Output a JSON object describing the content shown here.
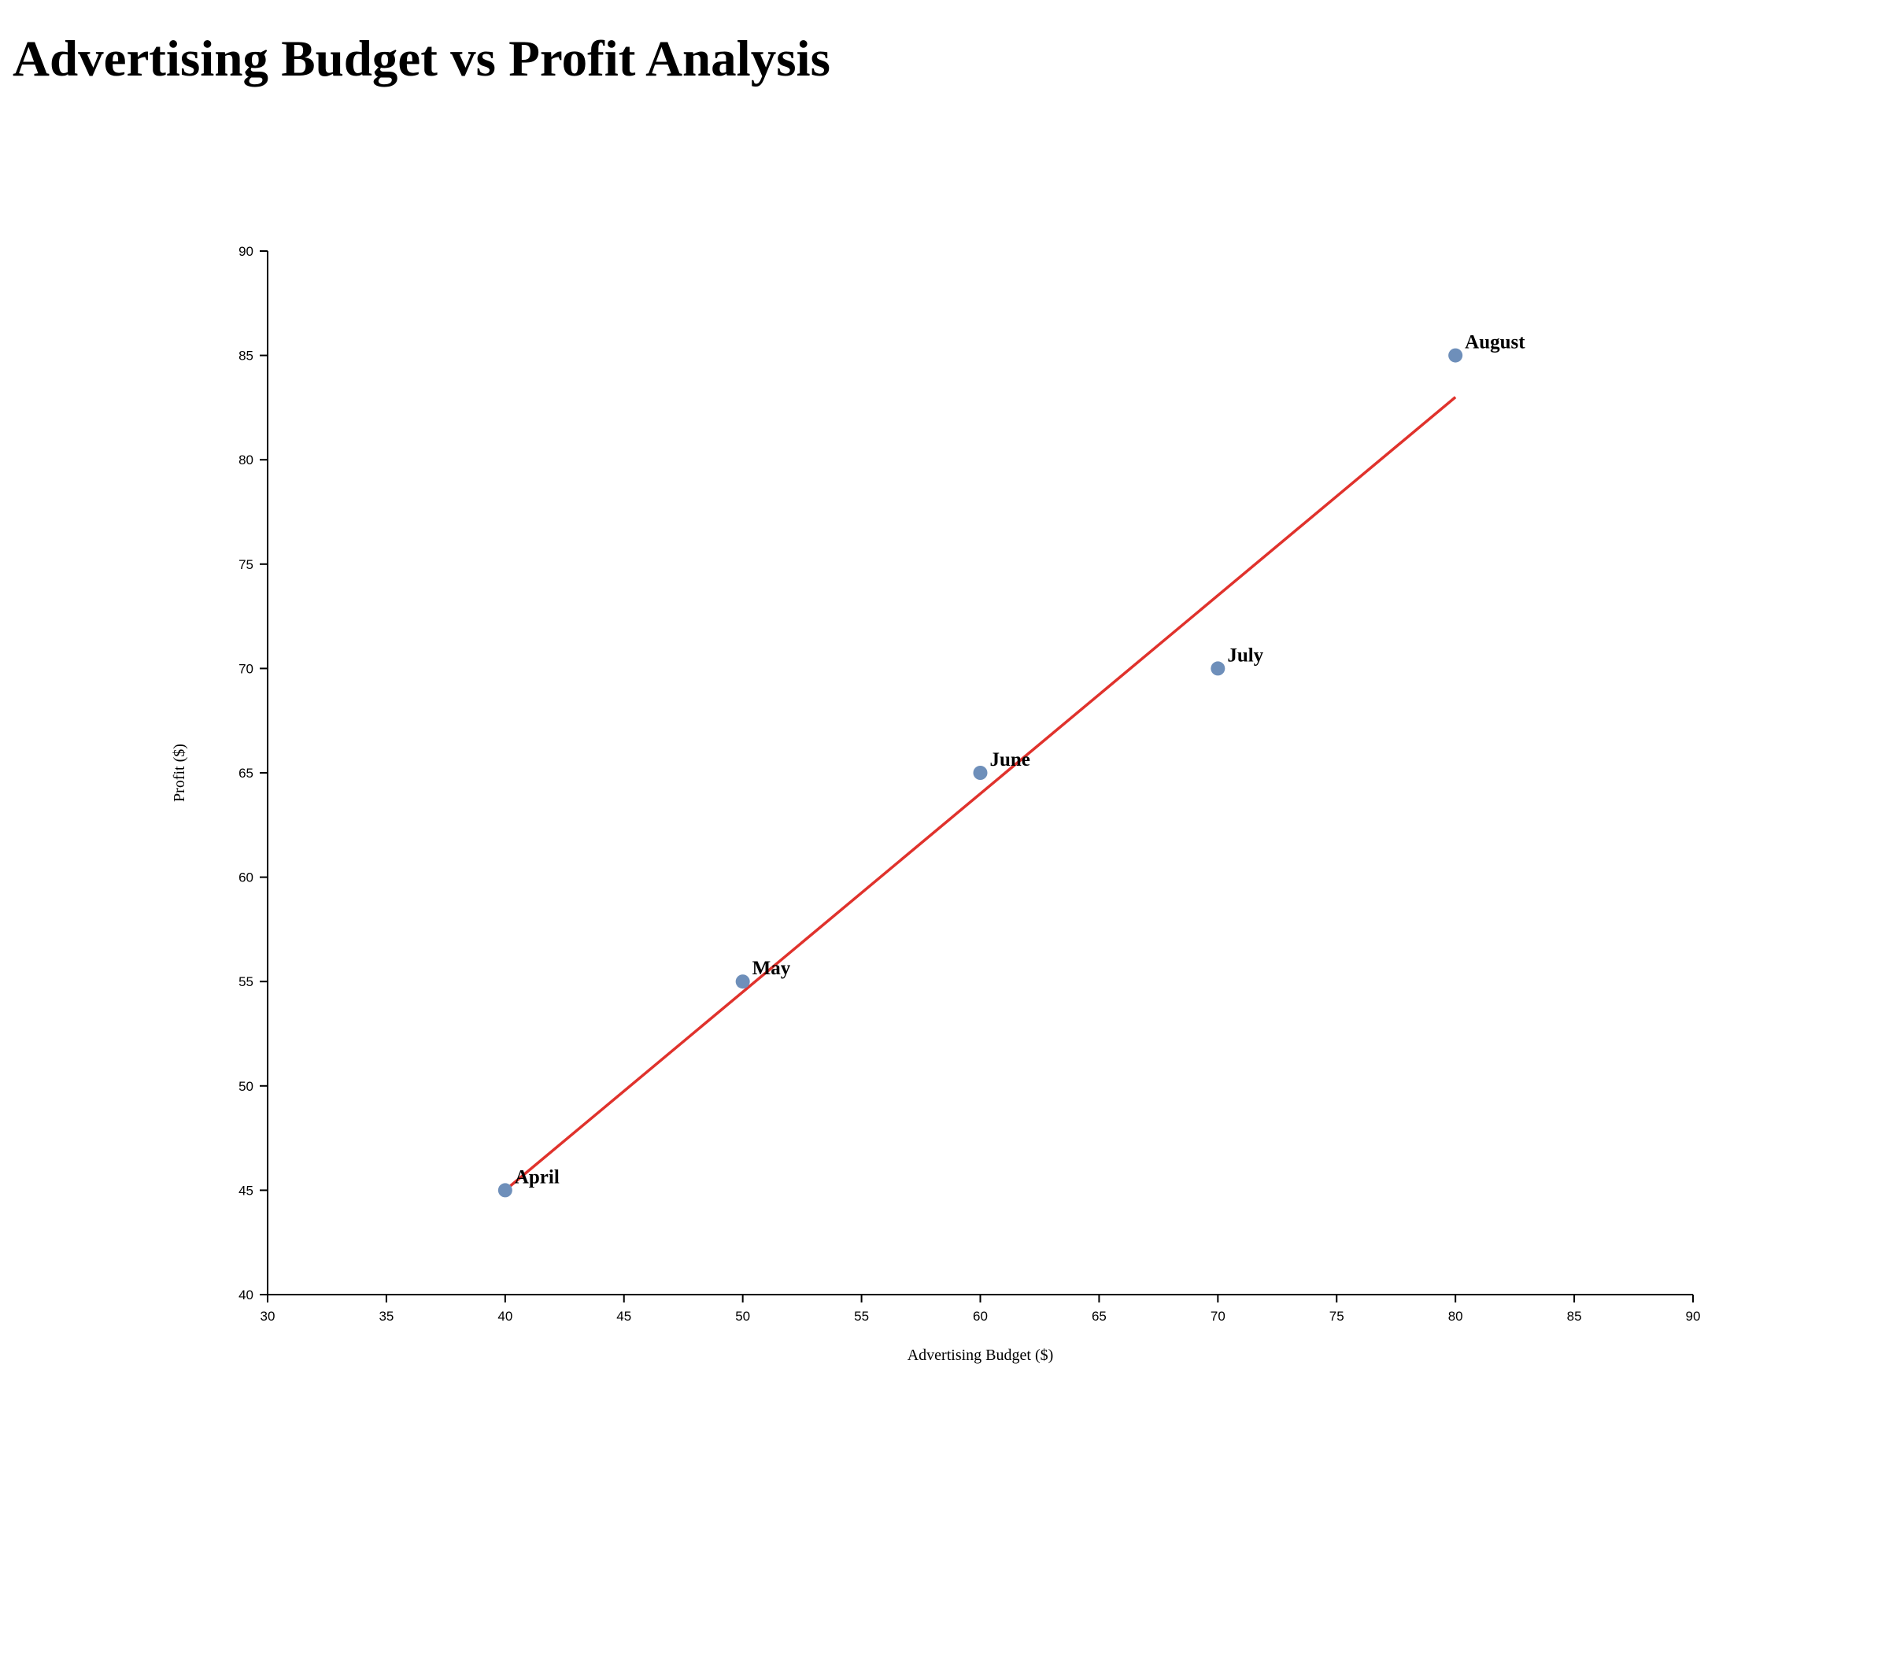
{
  "page": {
    "title": "Advertising Budget vs Profit Analysis"
  },
  "chart_data": {
    "type": "scatter",
    "title": "Advertising Budget vs Profit Analysis",
    "xlabel": "Advertising Budget ($)",
    "ylabel": "Profit ($)",
    "xlim": [
      30,
      90
    ],
    "ylim": [
      40,
      90
    ],
    "xticks": [
      30,
      35,
      40,
      45,
      50,
      55,
      60,
      65,
      70,
      75,
      80,
      85,
      90
    ],
    "yticks": [
      40,
      45,
      50,
      55,
      60,
      65,
      70,
      75,
      80,
      85,
      90
    ],
    "grid": false,
    "points": [
      {
        "label": "April",
        "x": 40,
        "y": 45
      },
      {
        "label": "May",
        "x": 50,
        "y": 55
      },
      {
        "label": "June",
        "x": 60,
        "y": 65
      },
      {
        "label": "July",
        "x": 70,
        "y": 70
      },
      {
        "label": "August",
        "x": 80,
        "y": 85
      }
    ],
    "trendline": {
      "x": [
        40,
        80
      ],
      "y": [
        45,
        83
      ]
    },
    "colors": {
      "point": "#6e8fba",
      "trendline": "#e0322c",
      "axis": "#000000"
    }
  }
}
